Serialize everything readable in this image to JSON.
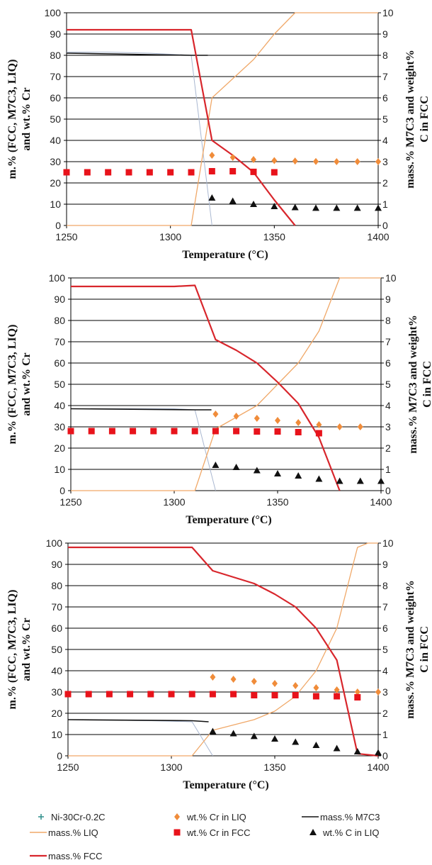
{
  "chart_data": [
    {
      "type": "scatter",
      "xlim": [
        1250,
        1400
      ],
      "ylim": [
        0,
        100
      ],
      "y2lim": [
        0,
        10
      ],
      "x_ticks": [
        "1250",
        "1300",
        "1350",
        "1400"
      ],
      "y_ticks": [
        "0",
        "10",
        "20",
        "30",
        "40",
        "50",
        "60",
        "70",
        "80",
        "90",
        "100"
      ],
      "y2_ticks": [
        "0",
        "1",
        "2",
        "3",
        "4",
        "5",
        "6",
        "7",
        "8",
        "9",
        "10"
      ],
      "xlabel": "Temperature (°C)",
      "ylabel": [
        "m.% (FCC, M7C3, LIQ)",
        "and wt.% Cr"
      ],
      "y2label": [
        "mass.% M7C3 and weight%",
        "C in FCC"
      ],
      "grid": "horizontal",
      "series": [
        {
          "name": "Ni-30Cr-0.2C",
          "axis": "left",
          "kind": "line",
          "x": [
            1250,
            1270,
            1290,
            1310,
            1320
          ],
          "y": [
            81.5,
            81.5,
            81,
            80,
            0
          ]
        },
        {
          "name": "mass.% M7C3",
          "axis": "left",
          "kind": "line",
          "x": [
            1250,
            1310,
            1318
          ],
          "y": [
            81,
            80,
            80
          ]
        },
        {
          "name": "mass.% LIQ",
          "axis": "left",
          "kind": "line",
          "x": [
            1250,
            1310,
            1320,
            1340,
            1350,
            1360,
            1370,
            1400
          ],
          "y": [
            0,
            0,
            60,
            78,
            90,
            100,
            100,
            100
          ]
        },
        {
          "name": "mass.% FCC",
          "axis": "left",
          "kind": "line",
          "x": [
            1250,
            1310,
            1320,
            1330,
            1340,
            1350,
            1360
          ],
          "y": [
            92,
            92,
            40,
            33,
            25,
            12,
            0
          ]
        },
        {
          "name": "wt.% Cr in LIQ",
          "axis": "left",
          "kind": "diamond",
          "x": [
            1320,
            1330,
            1340,
            1350,
            1360,
            1370,
            1380,
            1390,
            1400
          ],
          "y": [
            33,
            32,
            31,
            30.5,
            30.3,
            30.1,
            30,
            30,
            30
          ]
        },
        {
          "name": "wt.% Cr in FCC",
          "axis": "left",
          "kind": "square",
          "x": [
            1250,
            1260,
            1270,
            1280,
            1290,
            1300,
            1310,
            1320,
            1330,
            1340,
            1350
          ],
          "y": [
            25,
            25,
            25,
            25,
            25,
            25,
            25,
            25.5,
            25.5,
            25.2,
            25
          ]
        },
        {
          "name": "wt.% C in LIQ",
          "axis": "right",
          "kind": "triangle",
          "x": [
            1320,
            1330,
            1340,
            1350,
            1360,
            1370,
            1380,
            1390,
            1400
          ],
          "y": [
            1.3,
            1.15,
            1.0,
            0.9,
            0.85,
            0.82,
            0.82,
            0.82,
            0.82
          ]
        }
      ]
    },
    {
      "type": "scatter",
      "xlim": [
        1250,
        1400
      ],
      "ylim": [
        0,
        100
      ],
      "y2lim": [
        0,
        10
      ],
      "x_ticks": [
        "1250",
        "1300",
        "1350",
        "1400"
      ],
      "y_ticks": [
        "0",
        "10",
        "20",
        "30",
        "40",
        "50",
        "60",
        "70",
        "80",
        "90",
        "100"
      ],
      "y2_ticks": [
        "0",
        "1",
        "2",
        "3",
        "4",
        "5",
        "6",
        "7",
        "8",
        "9",
        "10"
      ],
      "xlabel": "Temperature (°C)",
      "ylabel": [
        "m.% (FCC, M7C3, LIQ)",
        "and wt.% Cr"
      ],
      "y2label": [
        "mass.% M7C3 and weight%",
        "C in FCC"
      ],
      "grid": "horizontal",
      "series": [
        {
          "name": "Ni-30Cr-0.2C",
          "axis": "left",
          "kind": "line",
          "x": [
            1250,
            1300,
            1310,
            1320
          ],
          "y": [
            38.5,
            38.5,
            38,
            0
          ]
        },
        {
          "name": "mass.% M7C3",
          "axis": "left",
          "kind": "line",
          "x": [
            1250,
            1310,
            1318
          ],
          "y": [
            38.5,
            38,
            38
          ]
        },
        {
          "name": "mass.% LIQ",
          "axis": "left",
          "kind": "line",
          "x": [
            1250,
            1310,
            1320,
            1340,
            1350,
            1360,
            1370,
            1380,
            1400
          ],
          "y": [
            0,
            0,
            29,
            40,
            50,
            60,
            75,
            100,
            100
          ]
        },
        {
          "name": "mass.% FCC",
          "axis": "left",
          "kind": "line",
          "x": [
            1250,
            1300,
            1310,
            1320,
            1330,
            1340,
            1350,
            1360,
            1370,
            1380
          ],
          "y": [
            96,
            96,
            96.5,
            71,
            66,
            60,
            51,
            41,
            25,
            0
          ]
        },
        {
          "name": "wt.% Cr in LIQ",
          "axis": "left",
          "kind": "diamond",
          "x": [
            1320,
            1330,
            1340,
            1350,
            1360,
            1370,
            1380,
            1390
          ],
          "y": [
            36,
            35,
            34,
            33,
            32,
            31,
            30,
            30
          ]
        },
        {
          "name": "wt.% Cr in FCC",
          "axis": "left",
          "kind": "square",
          "x": [
            1250,
            1260,
            1270,
            1280,
            1290,
            1300,
            1310,
            1320,
            1330,
            1340,
            1350,
            1360,
            1370
          ],
          "y": [
            28,
            28,
            28,
            28,
            28,
            28,
            28,
            28,
            28,
            27.8,
            27.8,
            27.5,
            27
          ]
        },
        {
          "name": "wt.% C in LIQ",
          "axis": "right",
          "kind": "triangle",
          "x": [
            1320,
            1330,
            1340,
            1350,
            1360,
            1370,
            1380,
            1390,
            1400
          ],
          "y": [
            1.2,
            1.1,
            0.95,
            0.8,
            0.7,
            0.55,
            0.45,
            0.45,
            0.45
          ]
        }
      ]
    },
    {
      "type": "scatter",
      "xlim": [
        1250,
        1400
      ],
      "ylim": [
        0,
        100
      ],
      "y2lim": [
        0,
        10
      ],
      "x_ticks": [
        "1250",
        "1300",
        "1350",
        "1400"
      ],
      "y_ticks": [
        "0",
        "10",
        "20",
        "30",
        "40",
        "50",
        "60",
        "70",
        "80",
        "90",
        "100"
      ],
      "y2_ticks": [
        "0",
        "1",
        "2",
        "3",
        "4",
        "5",
        "6",
        "7",
        "8",
        "9",
        "10"
      ],
      "xlabel": "Temperature (°C)",
      "ylabel": [
        "m.% (FCC, M7C3, LIQ)",
        "and wt.% Cr"
      ],
      "y2label": [
        "mass.% M7C3 and weight%",
        "C in FCC"
      ],
      "grid": "horizontal",
      "series": [
        {
          "name": "Ni-30Cr-0.2C",
          "axis": "left",
          "kind": "line",
          "x": [
            1250,
            1270,
            1290,
            1310,
            1320
          ],
          "y": [
            17,
            16.8,
            16.5,
            16,
            0
          ]
        },
        {
          "name": "mass.% M7C3",
          "axis": "left",
          "kind": "line",
          "x": [
            1250,
            1310,
            1318
          ],
          "y": [
            17,
            16.5,
            16
          ]
        },
        {
          "name": "mass.% LIQ",
          "axis": "left",
          "kind": "line",
          "x": [
            1250,
            1310,
            1320,
            1340,
            1350,
            1360,
            1370,
            1380,
            1390,
            1395,
            1400
          ],
          "y": [
            0,
            0,
            12,
            17,
            21,
            28,
            40,
            60,
            98,
            100,
            100
          ]
        },
        {
          "name": "mass.% FCC",
          "axis": "left",
          "kind": "line",
          "x": [
            1250,
            1310,
            1320,
            1340,
            1350,
            1360,
            1370,
            1380,
            1390,
            1400
          ],
          "y": [
            98,
            98,
            87,
            81,
            76,
            70,
            60,
            45,
            1,
            0
          ]
        },
        {
          "name": "wt.% Cr in LIQ",
          "axis": "left",
          "kind": "diamond",
          "x": [
            1320,
            1330,
            1340,
            1350,
            1360,
            1370,
            1380,
            1390,
            1400
          ],
          "y": [
            37,
            36,
            35,
            34,
            33,
            32,
            31,
            30,
            30
          ]
        },
        {
          "name": "wt.% Cr in FCC",
          "axis": "left",
          "kind": "square",
          "x": [
            1250,
            1260,
            1270,
            1280,
            1290,
            1300,
            1310,
            1320,
            1330,
            1340,
            1350,
            1360,
            1370,
            1380,
            1390
          ],
          "y": [
            29,
            29,
            29,
            29,
            29,
            29,
            29,
            29,
            29,
            28.5,
            28.5,
            28.5,
            28,
            28,
            27.5
          ]
        },
        {
          "name": "wt.% C in LIQ",
          "axis": "right",
          "kind": "triangle",
          "x": [
            1320,
            1330,
            1340,
            1350,
            1360,
            1370,
            1380,
            1390,
            1400
          ],
          "y": [
            1.15,
            1.05,
            0.92,
            0.8,
            0.65,
            0.5,
            0.35,
            0.2,
            0.15
          ]
        }
      ]
    }
  ],
  "legend": [
    {
      "label": "Ni-30Cr-0.2C",
      "kind": "plus",
      "color": "#2f8f8a"
    },
    {
      "label": "wt.% Cr in LIQ",
      "kind": "diamond",
      "color": "#f08c3a"
    },
    {
      "label": "mass.% M7C3",
      "kind": "line",
      "color": "#111111"
    },
    {
      "label": "mass.% LIQ",
      "kind": "line",
      "color": "#f0a868"
    },
    {
      "label": "wt.% Cr in FCC",
      "kind": "square",
      "color": "#e8131b"
    },
    {
      "label": "wt.% C in LIQ",
      "kind": "triangle",
      "color": "#111111"
    },
    {
      "label": "mass.% FCC",
      "kind": "line",
      "color": "#d8262c"
    }
  ],
  "colors": {
    "ni_line": "#a9b7d0",
    "m7c3": "#111111",
    "liq": "#f0a868",
    "fcc": "#d8262c",
    "cr_liq": "#f08c3a",
    "cr_fcc": "#e8131b",
    "c_liq": "#111111",
    "grid": "#000000"
  }
}
